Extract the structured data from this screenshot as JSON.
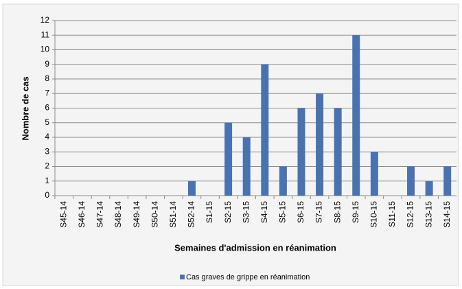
{
  "chart_data": {
    "type": "bar",
    "x_label": "Semaines d'admission en réanimation",
    "y_label": "Nombre de cas",
    "categories": [
      "S45-14",
      "S46-14",
      "S47-14",
      "S48-14",
      "S49-14",
      "S50-14",
      "S51-14",
      "S52-14",
      "S1-15",
      "S2-15",
      "S3-15",
      "S4-15",
      "S5-15",
      "S6-15",
      "S7-15",
      "S8-15",
      "S9-15",
      "S10-15",
      "S11-15",
      "S12-15",
      "S13-15",
      "S14-15"
    ],
    "series": [
      {
        "name": "Cas graves de grippe en réanimation",
        "color": "#4a72b0",
        "values": [
          0,
          0,
          0,
          0,
          0,
          0,
          0,
          1,
          0,
          5,
          4,
          9,
          2,
          6,
          7,
          6,
          11,
          3,
          0,
          2,
          1,
          2
        ]
      }
    ],
    "ylim": [
      0,
      12
    ],
    "yticks": [
      0,
      1,
      2,
      3,
      4,
      5,
      6,
      7,
      8,
      9,
      10,
      11,
      12
    ],
    "grid": true,
    "legend": "bottom"
  }
}
